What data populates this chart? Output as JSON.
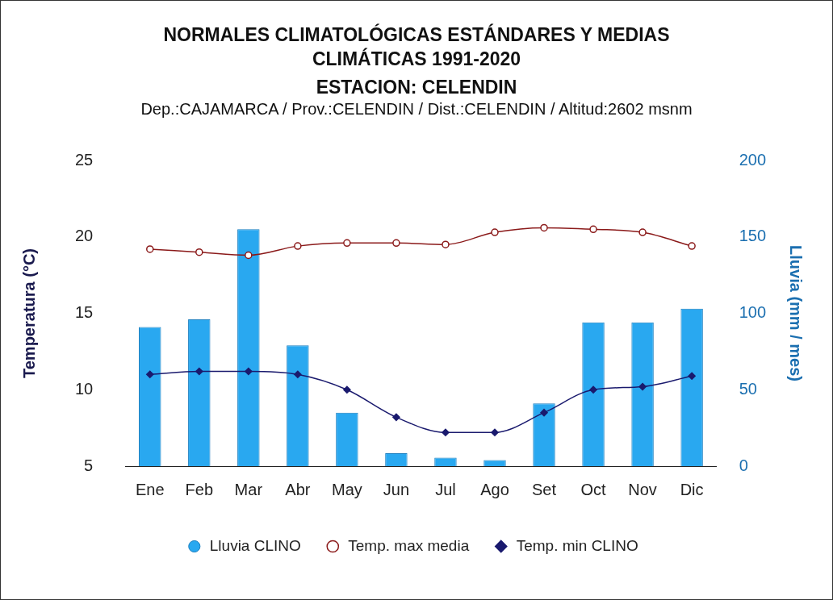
{
  "chart_data": {
    "type": "bar",
    "title": "NORMALES CLIMATOLÓGICAS ESTÁNDARES Y MEDIAS CLIMÁTICAS 1991-2020",
    "subtitle": "ESTACION: CELENDIN",
    "annotations": [
      "Dep.:CAJAMARCA / Prov.:CELENDIN / Dist.:CELENDIN / Altitud:2602 msnm"
    ],
    "categories": [
      "Ene",
      "Feb",
      "Mar",
      "Abr",
      "May",
      "Jun",
      "Jul",
      "Ago",
      "Set",
      "Oct",
      "Nov",
      "Dic"
    ],
    "series": [
      {
        "name": "Lluvia CLINO",
        "type": "bar",
        "axis": "y2",
        "color": "#29a8f0",
        "values": [
          91,
          96,
          155,
          79,
          35,
          8.5,
          5.5,
          4,
          41,
          94,
          94,
          103
        ]
      },
      {
        "name": "Temp. max media",
        "type": "line",
        "marker": "circle",
        "color": "#8b1a1a",
        "values": [
          19.2,
          19.0,
          18.8,
          19.4,
          19.6,
          19.6,
          19.5,
          20.3,
          20.6,
          20.5,
          20.3,
          19.4
        ]
      },
      {
        "name": "Temp. min CLINO",
        "type": "line",
        "marker": "diamond",
        "color": "#1a1a6e",
        "values": [
          11.0,
          11.2,
          11.2,
          11.0,
          10.0,
          8.2,
          7.2,
          7.2,
          8.5,
          10.0,
          10.2,
          10.9
        ]
      }
    ],
    "ylabel": "Temperatura (°C)",
    "y2label": "Lluvia (mm / mes)",
    "ylim": [
      5,
      25
    ],
    "yticks": [
      5,
      10,
      15,
      20,
      25
    ],
    "y2lim": [
      0,
      200
    ],
    "y2ticks": [
      0,
      50,
      100,
      150,
      200
    ],
    "grid": false,
    "legend": "bottom",
    "line_style": "solid"
  }
}
